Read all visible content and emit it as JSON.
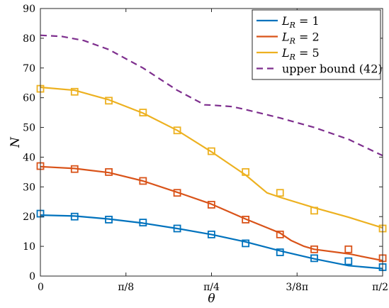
{
  "chart_data": {
    "type": "line",
    "xlabel": "θ",
    "ylabel": "N",
    "xlim": [
      0,
      1.5708
    ],
    "ylim": [
      0,
      90
    ],
    "x_ticks": [
      {
        "value": 0,
        "label": "0"
      },
      {
        "value": 0.3927,
        "label": "π/8"
      },
      {
        "value": 0.7854,
        "label": "π/4"
      },
      {
        "value": 1.1781,
        "label": "3/8π"
      },
      {
        "value": 1.5708,
        "label": "π/2"
      }
    ],
    "y_ticks": [
      0,
      10,
      20,
      30,
      40,
      50,
      60,
      70,
      80,
      90
    ],
    "legend_position": "top-right",
    "grid": false,
    "series": [
      {
        "name": "L_R = 1",
        "legend_main": "L",
        "legend_sub": "R",
        "legend_rest": " = 1",
        "color": "#0072BD",
        "style": "solid",
        "line": [
          {
            "x": 0,
            "y": 20.5
          },
          {
            "x": 0.157,
            "y": 20.2
          },
          {
            "x": 0.314,
            "y": 19.2
          },
          {
            "x": 0.471,
            "y": 17.8
          },
          {
            "x": 0.628,
            "y": 16.0
          },
          {
            "x": 0.785,
            "y": 14.0
          },
          {
            "x": 0.942,
            "y": 11.5
          },
          {
            "x": 1.1,
            "y": 8.5
          },
          {
            "x": 1.257,
            "y": 5.8
          },
          {
            "x": 1.414,
            "y": 3.5
          },
          {
            "x": 1.571,
            "y": 2.5
          }
        ],
        "markers": [
          {
            "x": 0,
            "y": 21
          },
          {
            "x": 0.157,
            "y": 20
          },
          {
            "x": 0.314,
            "y": 19
          },
          {
            "x": 0.471,
            "y": 18
          },
          {
            "x": 0.628,
            "y": 16
          },
          {
            "x": 0.785,
            "y": 14
          },
          {
            "x": 0.942,
            "y": 11
          },
          {
            "x": 1.1,
            "y": 8
          },
          {
            "x": 1.257,
            "y": 6
          },
          {
            "x": 1.414,
            "y": 5
          },
          {
            "x": 1.571,
            "y": 3
          }
        ]
      },
      {
        "name": "L_R = 2",
        "legend_main": "L",
        "legend_sub": "R",
        "legend_rest": " = 2",
        "color": "#D95319",
        "style": "solid",
        "line": [
          {
            "x": 0,
            "y": 36.8
          },
          {
            "x": 0.157,
            "y": 36.2
          },
          {
            "x": 0.314,
            "y": 34.8
          },
          {
            "x": 0.471,
            "y": 32.0
          },
          {
            "x": 0.628,
            "y": 28.2
          },
          {
            "x": 0.785,
            "y": 24.2
          },
          {
            "x": 0.942,
            "y": 19.2
          },
          {
            "x": 1.1,
            "y": 14.5
          },
          {
            "x": 1.15,
            "y": 12.0
          },
          {
            "x": 1.21,
            "y": 10.0
          },
          {
            "x": 1.257,
            "y": 9.0
          },
          {
            "x": 1.414,
            "y": 7.5
          },
          {
            "x": 1.571,
            "y": 5.2
          }
        ],
        "markers": [
          {
            "x": 0,
            "y": 37
          },
          {
            "x": 0.157,
            "y": 36
          },
          {
            "x": 0.314,
            "y": 35
          },
          {
            "x": 0.471,
            "y": 32
          },
          {
            "x": 0.628,
            "y": 28
          },
          {
            "x": 0.785,
            "y": 24
          },
          {
            "x": 0.942,
            "y": 19
          },
          {
            "x": 1.1,
            "y": 14
          },
          {
            "x": 1.257,
            "y": 9
          },
          {
            "x": 1.414,
            "y": 9
          },
          {
            "x": 1.571,
            "y": 6
          }
        ]
      },
      {
        "name": "L_R = 5",
        "legend_main": "L",
        "legend_sub": "R",
        "legend_rest": " = 5",
        "color": "#EDB120",
        "style": "solid",
        "line": [
          {
            "x": 0,
            "y": 63.5
          },
          {
            "x": 0.157,
            "y": 62.5
          },
          {
            "x": 0.314,
            "y": 59.3
          },
          {
            "x": 0.471,
            "y": 54.8
          },
          {
            "x": 0.628,
            "y": 49.0
          },
          {
            "x": 0.785,
            "y": 41.8
          },
          {
            "x": 0.942,
            "y": 34.0
          },
          {
            "x": 1.04,
            "y": 28.0
          },
          {
            "x": 1.1,
            "y": 26.5
          },
          {
            "x": 1.257,
            "y": 23.0
          },
          {
            "x": 1.414,
            "y": 19.8
          },
          {
            "x": 1.571,
            "y": 16.2
          }
        ],
        "markers": [
          {
            "x": 0,
            "y": 63
          },
          {
            "x": 0.157,
            "y": 62
          },
          {
            "x": 0.314,
            "y": 59
          },
          {
            "x": 0.471,
            "y": 55
          },
          {
            "x": 0.628,
            "y": 49
          },
          {
            "x": 0.785,
            "y": 42
          },
          {
            "x": 0.942,
            "y": 35
          },
          {
            "x": 1.1,
            "y": 28
          },
          {
            "x": 1.257,
            "y": 22
          },
          {
            "x": 1.571,
            "y": 16
          }
        ]
      },
      {
        "name": "upper bound (42)",
        "legend_main": "upper bound (42)",
        "legend_sub": "",
        "legend_rest": "",
        "color": "#7E2F8E",
        "style": "dashed",
        "line": [
          {
            "x": 0,
            "y": 81.0
          },
          {
            "x": 0.1,
            "y": 80.6
          },
          {
            "x": 0.2,
            "y": 79.2
          },
          {
            "x": 0.314,
            "y": 76.2
          },
          {
            "x": 0.471,
            "y": 70.0
          },
          {
            "x": 0.628,
            "y": 62.5
          },
          {
            "x": 0.754,
            "y": 57.6
          },
          {
            "x": 0.785,
            "y": 57.5
          },
          {
            "x": 0.88,
            "y": 57.0
          },
          {
            "x": 0.942,
            "y": 56.0
          },
          {
            "x": 1.1,
            "y": 53.2
          },
          {
            "x": 1.257,
            "y": 50.0
          },
          {
            "x": 1.414,
            "y": 46.0
          },
          {
            "x": 1.571,
            "y": 40.5
          }
        ],
        "markers": []
      }
    ]
  }
}
